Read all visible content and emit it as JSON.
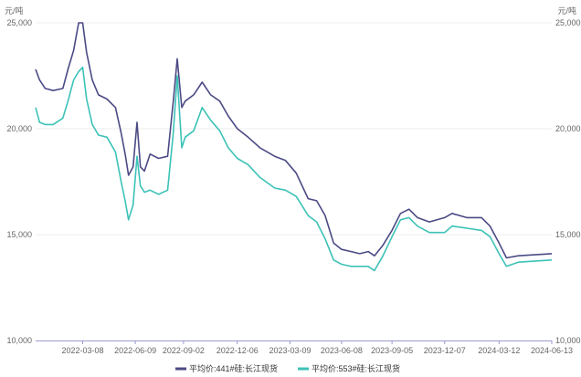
{
  "chart_data": {
    "type": "line",
    "title": "",
    "y_unit_left": "元/吨",
    "y_unit_right": "元/吨",
    "ylim": [
      10000,
      25000
    ],
    "y_ticks": [
      "10,000",
      "15,000",
      "20,000",
      "25,000"
    ],
    "y_tick_values": [
      10000,
      15000,
      20000,
      25000
    ],
    "xlim": [
      "2021-12-15",
      "2024-06-13"
    ],
    "x_ticks": [
      "2022-03-08",
      "2022-06-09",
      "2022-09-02",
      "2022-12-06",
      "2023-03-09",
      "2023-06-08",
      "2023-09-05",
      "2023-12-07",
      "2024-03-12",
      "2024-06-13"
    ],
    "grid": true,
    "legend": "bottom-center",
    "colors": {
      "s441": "#4b4a85",
      "s553": "#3cc2b7",
      "axis": "#9a9ad0",
      "grid": "#ececec"
    },
    "series": [
      {
        "name": "平均价:441#硅:长江现货",
        "points": [
          [
            "2021-12-15",
            22800
          ],
          [
            "2021-12-22",
            22300
          ],
          [
            "2022-01-01",
            21900
          ],
          [
            "2022-01-15",
            21800
          ],
          [
            "2022-02-01",
            21900
          ],
          [
            "2022-02-10",
            22800
          ],
          [
            "2022-02-20",
            23700
          ],
          [
            "2022-03-01",
            25000
          ],
          [
            "2022-03-08",
            25000
          ],
          [
            "2022-03-15",
            23600
          ],
          [
            "2022-03-25",
            22300
          ],
          [
            "2022-04-05",
            21600
          ],
          [
            "2022-04-20",
            21400
          ],
          [
            "2022-05-05",
            21000
          ],
          [
            "2022-05-15",
            19800
          ],
          [
            "2022-05-22",
            18800
          ],
          [
            "2022-05-28",
            17800
          ],
          [
            "2022-06-05",
            18200
          ],
          [
            "2022-06-12",
            20300
          ],
          [
            "2022-06-18",
            18200
          ],
          [
            "2022-06-25",
            18000
          ],
          [
            "2022-07-05",
            18800
          ],
          [
            "2022-07-20",
            18600
          ],
          [
            "2022-08-05",
            18700
          ],
          [
            "2022-08-15",
            21300
          ],
          [
            "2022-08-22",
            23300
          ],
          [
            "2022-08-30",
            21000
          ],
          [
            "2022-09-05",
            21300
          ],
          [
            "2022-09-20",
            21600
          ],
          [
            "2022-10-05",
            22200
          ],
          [
            "2022-10-20",
            21600
          ],
          [
            "2022-11-05",
            21300
          ],
          [
            "2022-11-20",
            20600
          ],
          [
            "2022-12-06",
            20000
          ],
          [
            "2022-12-25",
            19600
          ],
          [
            "2023-01-15",
            19100
          ],
          [
            "2023-02-10",
            18700
          ],
          [
            "2023-03-01",
            18500
          ],
          [
            "2023-03-20",
            17900
          ],
          [
            "2023-04-10",
            16700
          ],
          [
            "2023-04-25",
            16600
          ],
          [
            "2023-05-10",
            15900
          ],
          [
            "2023-05-25",
            14600
          ],
          [
            "2023-06-08",
            14300
          ],
          [
            "2023-06-25",
            14200
          ],
          [
            "2023-07-10",
            14100
          ],
          [
            "2023-07-25",
            14200
          ],
          [
            "2023-08-05",
            14000
          ],
          [
            "2023-08-20",
            14500
          ],
          [
            "2023-09-05",
            15200
          ],
          [
            "2023-09-20",
            16000
          ],
          [
            "2023-10-05",
            16200
          ],
          [
            "2023-10-20",
            15800
          ],
          [
            "2023-11-10",
            15600
          ],
          [
            "2023-12-07",
            15800
          ],
          [
            "2023-12-20",
            16000
          ],
          [
            "2024-01-15",
            15800
          ],
          [
            "2024-02-10",
            15800
          ],
          [
            "2024-02-25",
            15400
          ],
          [
            "2024-03-12",
            14600
          ],
          [
            "2024-03-25",
            13900
          ],
          [
            "2024-04-15",
            14000
          ],
          [
            "2024-06-13",
            14100
          ]
        ]
      },
      {
        "name": "平均价:553#硅:长江现货",
        "points": [
          [
            "2021-12-15",
            21000
          ],
          [
            "2021-12-22",
            20300
          ],
          [
            "2022-01-01",
            20200
          ],
          [
            "2022-01-15",
            20200
          ],
          [
            "2022-02-01",
            20500
          ],
          [
            "2022-02-10",
            21300
          ],
          [
            "2022-02-20",
            22300
          ],
          [
            "2022-03-01",
            22700
          ],
          [
            "2022-03-08",
            22900
          ],
          [
            "2022-03-15",
            21400
          ],
          [
            "2022-03-25",
            20200
          ],
          [
            "2022-04-05",
            19700
          ],
          [
            "2022-04-20",
            19600
          ],
          [
            "2022-05-05",
            18900
          ],
          [
            "2022-05-15",
            17500
          ],
          [
            "2022-05-22",
            16600
          ],
          [
            "2022-05-28",
            15700
          ],
          [
            "2022-06-05",
            16400
          ],
          [
            "2022-06-12",
            18700
          ],
          [
            "2022-06-18",
            17300
          ],
          [
            "2022-06-25",
            17000
          ],
          [
            "2022-07-05",
            17100
          ],
          [
            "2022-07-20",
            16900
          ],
          [
            "2022-08-05",
            17100
          ],
          [
            "2022-08-15",
            19800
          ],
          [
            "2022-08-22",
            22500
          ],
          [
            "2022-08-30",
            19100
          ],
          [
            "2022-09-05",
            19600
          ],
          [
            "2022-09-20",
            19900
          ],
          [
            "2022-10-05",
            21000
          ],
          [
            "2022-10-20",
            20400
          ],
          [
            "2022-11-05",
            19900
          ],
          [
            "2022-11-20",
            19100
          ],
          [
            "2022-12-06",
            18600
          ],
          [
            "2022-12-25",
            18300
          ],
          [
            "2023-01-15",
            17700
          ],
          [
            "2023-02-10",
            17200
          ],
          [
            "2023-03-01",
            17100
          ],
          [
            "2023-03-20",
            16800
          ],
          [
            "2023-04-10",
            15900
          ],
          [
            "2023-04-25",
            15600
          ],
          [
            "2023-05-10",
            14800
          ],
          [
            "2023-05-25",
            13800
          ],
          [
            "2023-06-08",
            13600
          ],
          [
            "2023-06-25",
            13500
          ],
          [
            "2023-07-10",
            13500
          ],
          [
            "2023-07-25",
            13500
          ],
          [
            "2023-08-05",
            13300
          ],
          [
            "2023-08-20",
            14000
          ],
          [
            "2023-09-05",
            14900
          ],
          [
            "2023-09-20",
            15700
          ],
          [
            "2023-10-05",
            15800
          ],
          [
            "2023-10-20",
            15400
          ],
          [
            "2023-11-10",
            15100
          ],
          [
            "2023-12-07",
            15100
          ],
          [
            "2023-12-20",
            15400
          ],
          [
            "2024-01-15",
            15300
          ],
          [
            "2024-02-10",
            15200
          ],
          [
            "2024-02-25",
            14900
          ],
          [
            "2024-03-12",
            14100
          ],
          [
            "2024-03-25",
            13500
          ],
          [
            "2024-04-15",
            13700
          ],
          [
            "2024-06-13",
            13800
          ]
        ]
      }
    ]
  }
}
